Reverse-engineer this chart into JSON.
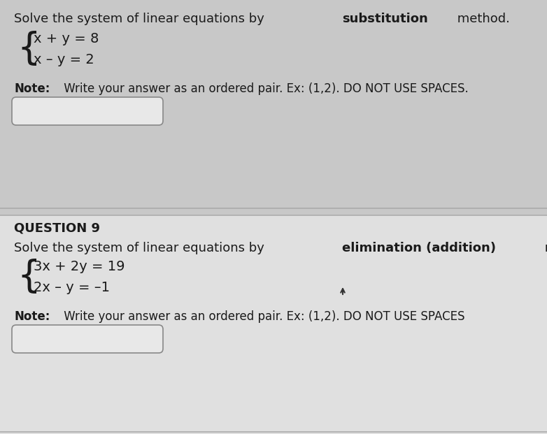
{
  "bg_top": "#c8c8c8",
  "bg_bottom": "#e0e0e0",
  "text_color": "#1a1a1a",
  "box_fill": "#f0f0f0",
  "box_edge": "#aaaaaa",
  "divider_color": "#aaaaaa",
  "prefix1": "Solve the system of linear equations by ",
  "bold1": "substitution",
  "suffix1": " method.",
  "eq1a": "x + y = 8",
  "eq1b": "x – y = 2",
  "note1_bold": "Note:",
  "note1_rest": " Write your answer as an ordered pair. Ex: (1,2). DO NOT USE SPACES.",
  "question_label": "QUESTION 9",
  "prefix2": "Solve the system of linear equations by ",
  "bold2": "elimination (addition)",
  "suffix2": " method.",
  "eq2a": "3x + 2y = 19",
  "eq2b": "2x – y = –1",
  "note2_bold": "Note:",
  "note2_rest": " Write your answer as an ordered pair. Ex: (1,2). DO NOT USE SPACES",
  "fs": 13,
  "fs_eq": 14,
  "fs_note": 12,
  "fs_brace": 38
}
